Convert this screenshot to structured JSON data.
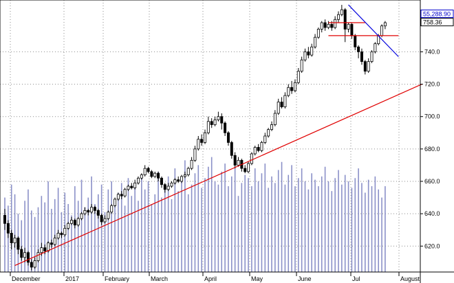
{
  "chart_data": {
    "type": "candlestick",
    "title": "",
    "xlabel": "",
    "ylabel": "",
    "y_axis_position": "right",
    "ylim": [
      604,
      772
    ],
    "y_ticks": [
      620,
      640,
      660,
      680,
      700,
      720,
      740
    ],
    "x_labels": [
      "December",
      "2017",
      "February",
      "March",
      "April",
      "May",
      "June",
      "Jul",
      "August"
    ],
    "grid": "dotted horizontal and vertical",
    "candles": [
      [
        639,
        634,
        643,
        630
      ],
      [
        634,
        628,
        636,
        625
      ],
      [
        628,
        622,
        630,
        618
      ],
      [
        622,
        625,
        627,
        619
      ],
      [
        625,
        618,
        626,
        615
      ],
      [
        618,
        613,
        620,
        611
      ],
      [
        613,
        616,
        619,
        610
      ],
      [
        616,
        610,
        617,
        608
      ],
      [
        610,
        607,
        612,
        605
      ],
      [
        607,
        611,
        613,
        606
      ],
      [
        611,
        616,
        618,
        610
      ],
      [
        616,
        619,
        622,
        614
      ],
      [
        619,
        617,
        621,
        615
      ],
      [
        617,
        622,
        623,
        616
      ],
      [
        622,
        621,
        624,
        619
      ],
      [
        621,
        625,
        627,
        620
      ],
      [
        625,
        628,
        630,
        624
      ],
      [
        628,
        627,
        629,
        625
      ],
      [
        627,
        631,
        633,
        626
      ],
      [
        631,
        634,
        635,
        630
      ],
      [
        634,
        636,
        638,
        633
      ],
      [
        636,
        633,
        637,
        631
      ],
      [
        633,
        637,
        638,
        632
      ],
      [
        637,
        640,
        641,
        636
      ],
      [
        640,
        642,
        644,
        639
      ],
      [
        642,
        641,
        643,
        639
      ],
      [
        641,
        644,
        646,
        640
      ],
      [
        644,
        642,
        645,
        640
      ],
      [
        642,
        639,
        643,
        637
      ],
      [
        639,
        635,
        640,
        633
      ],
      [
        635,
        637,
        639,
        634
      ],
      [
        637,
        641,
        642,
        636
      ],
      [
        641,
        645,
        646,
        640
      ],
      [
        645,
        649,
        650,
        644
      ],
      [
        649,
        652,
        653,
        648
      ],
      [
        652,
        651,
        654,
        649
      ],
      [
        651,
        655,
        656,
        650
      ],
      [
        655,
        657,
        658,
        654
      ],
      [
        657,
        656,
        659,
        655
      ],
      [
        656,
        659,
        661,
        655
      ],
      [
        659,
        662,
        663,
        658
      ],
      [
        662,
        664,
        665,
        661
      ],
      [
        664,
        668,
        670,
        663
      ],
      [
        668,
        666,
        669,
        665
      ],
      [
        666,
        663,
        667,
        662
      ],
      [
        663,
        665,
        666,
        662
      ],
      [
        665,
        662,
        666,
        660
      ],
      [
        662,
        658,
        663,
        656
      ],
      [
        658,
        655,
        659,
        653
      ],
      [
        655,
        657,
        659,
        654
      ],
      [
        657,
        659,
        660,
        656
      ],
      [
        659,
        661,
        662,
        658
      ],
      [
        661,
        660,
        663,
        659
      ],
      [
        660,
        663,
        664,
        659
      ],
      [
        663,
        664,
        666,
        662
      ],
      [
        664,
        668,
        669,
        663
      ],
      [
        668,
        673,
        675,
        667
      ],
      [
        673,
        680,
        682,
        672
      ],
      [
        680,
        686,
        688,
        679
      ],
      [
        686,
        684,
        689,
        682
      ],
      [
        684,
        690,
        692,
        683
      ],
      [
        690,
        697,
        700,
        689
      ],
      [
        697,
        695,
        699,
        693
      ],
      [
        695,
        698,
        700,
        694
      ],
      [
        698,
        700,
        703,
        697
      ],
      [
        700,
        696,
        702,
        692
      ],
      [
        696,
        690,
        697,
        688
      ],
      [
        690,
        684,
        691,
        682
      ],
      [
        684,
        676,
        685,
        674
      ],
      [
        676,
        670,
        678,
        668
      ],
      [
        670,
        673,
        675,
        669
      ],
      [
        673,
        668,
        674,
        666
      ],
      [
        668,
        666,
        670,
        665
      ],
      [
        666,
        671,
        672,
        665
      ],
      [
        671,
        677,
        678,
        670
      ],
      [
        677,
        681,
        682,
        676
      ],
      [
        681,
        679,
        683,
        678
      ],
      [
        679,
        684,
        685,
        678
      ],
      [
        684,
        688,
        690,
        683
      ],
      [
        688,
        692,
        693,
        687
      ],
      [
        692,
        695,
        697,
        691
      ],
      [
        695,
        702,
        704,
        694
      ],
      [
        702,
        709,
        711,
        701
      ],
      [
        709,
        706,
        712,
        705
      ],
      [
        706,
        713,
        715,
        705
      ],
      [
        713,
        718,
        720,
        712
      ],
      [
        718,
        716,
        722,
        714
      ],
      [
        716,
        721,
        723,
        715
      ],
      [
        721,
        728,
        730,
        720
      ],
      [
        728,
        735,
        737,
        727
      ],
      [
        735,
        740,
        742,
        734
      ],
      [
        740,
        738,
        743,
        736
      ],
      [
        738,
        743,
        745,
        737
      ],
      [
        743,
        749,
        751,
        742
      ],
      [
        749,
        754,
        755,
        748
      ],
      [
        754,
        758,
        759,
        752
      ],
      [
        758,
        755,
        760,
        753
      ],
      [
        755,
        757,
        759,
        754
      ],
      [
        757,
        755,
        759,
        753
      ],
      [
        755,
        760,
        762,
        754
      ],
      [
        760,
        763,
        765,
        758
      ],
      [
        763,
        766,
        769,
        762
      ],
      [
        766,
        754,
        767,
        746
      ],
      [
        754,
        757,
        758,
        752
      ],
      [
        757,
        750,
        758,
        748
      ],
      [
        750,
        743,
        751,
        741
      ],
      [
        743,
        740,
        744,
        736
      ],
      [
        740,
        734,
        742,
        732
      ],
      [
        734,
        728,
        735,
        726
      ],
      [
        728,
        734,
        736,
        727
      ],
      [
        734,
        740,
        741,
        733
      ],
      [
        740,
        745,
        746,
        739
      ],
      [
        745,
        750,
        751,
        744
      ],
      [
        750,
        756,
        757,
        749
      ],
      [
        756,
        758,
        759,
        754
      ]
    ],
    "volume": [
      650,
      645,
      658,
      652,
      640,
      636,
      648,
      655,
      642,
      638,
      644,
      651,
      647,
      660,
      643,
      649,
      656,
      641,
      653,
      646,
      639,
      657,
      648,
      661,
      644,
      650,
      663,
      646,
      652,
      658,
      641,
      655,
      660,
      647,
      653,
      659,
      645,
      662,
      651,
      657,
      648,
      664,
      655,
      660,
      646,
      652,
      666,
      650,
      657,
      663,
      649,
      668,
      654,
      660,
      673,
      652,
      658,
      665,
      670,
      656,
      662,
      669,
      675,
      660,
      658,
      666,
      671,
      657,
      663,
      669,
      651,
      659,
      664,
      662,
      657,
      668,
      660,
      665,
      671,
      656,
      663,
      659,
      667,
      672,
      658,
      664,
      670,
      657,
      662,
      668,
      660,
      655,
      665,
      661,
      657,
      663,
      669,
      660,
      654,
      662,
      667,
      658,
      664,
      660,
      656,
      662,
      668,
      659,
      653,
      661,
      657,
      663,
      655,
      650,
      657
    ],
    "trendlines": [
      {
        "color": "#e00000",
        "from": [
          3,
          608
        ],
        "to": [
          125,
          720
        ]
      },
      {
        "color": "#e00000",
        "from": [
          97,
          758
        ],
        "to": [
          108,
          758
        ]
      },
      {
        "color": "#e00000",
        "from": [
          97,
          750
        ],
        "to": [
          118,
          750
        ]
      },
      {
        "color": "#0000dd",
        "from": [
          103,
          769
        ],
        "to": [
          118,
          737
        ]
      }
    ],
    "price_badges": [
      {
        "label": "55,288.90",
        "value": 763.5,
        "bg": "#ffffff",
        "border": "#0000cc",
        "text_color": "#0000cc"
      },
      {
        "label": "758.36",
        "value": 758.36,
        "bg": "#ffffff",
        "border": "#000000",
        "text_color": "#000000"
      }
    ],
    "colors": {
      "candle": "#000000",
      "volume": "#8a90c8",
      "grid": "#8a8a8a",
      "support": "#e00000",
      "resistance": "#0000dd"
    }
  }
}
